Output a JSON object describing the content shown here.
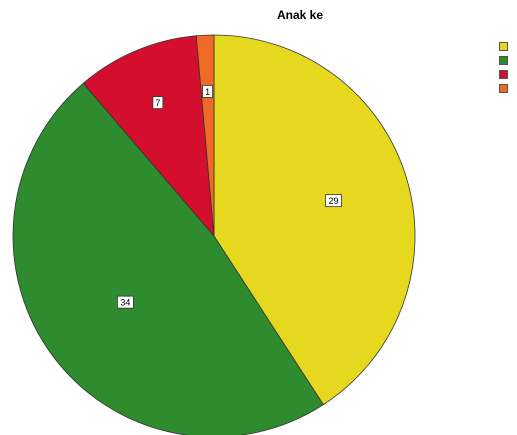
{
  "chart_data": {
    "type": "pie",
    "title": "Anak ke",
    "slices": [
      {
        "label": "",
        "value": 29,
        "color": "#e6d81e"
      },
      {
        "label": "",
        "value": 34,
        "color": "#2e8b2e"
      },
      {
        "label": "",
        "value": 7,
        "color": "#d40f2d"
      },
      {
        "label": "",
        "value": 1,
        "color": "#ef6a24"
      }
    ],
    "data_labels": [
      "29",
      "34",
      "7",
      "1"
    ],
    "legend_placement": "top-right"
  }
}
